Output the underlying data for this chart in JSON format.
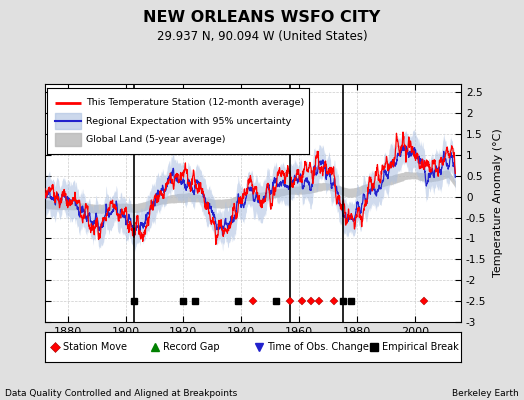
{
  "title": "NEW ORLEANS WSFO CITY",
  "subtitle": "29.937 N, 90.094 W (United States)",
  "ylabel": "Temperature Anomaly (°C)",
  "xlabel_note": "Data Quality Controlled and Aligned at Breakpoints",
  "source_note": "Berkeley Earth",
  "year_start": 1869,
  "year_end": 2014,
  "ylim": [
    -3.0,
    2.7
  ],
  "yticks": [
    -3,
    -2.5,
    -2,
    -1.5,
    -1,
    -0.5,
    0,
    0.5,
    1,
    1.5,
    2,
    2.5
  ],
  "xticks": [
    1880,
    1900,
    1920,
    1940,
    1960,
    1980,
    2000
  ],
  "bg_color": "#e0e0e0",
  "plot_bg_color": "#ffffff",
  "grid_color": "#cccccc",
  "station_move_years": [
    1944,
    1957,
    1961,
    1964,
    1967,
    1972,
    2003
  ],
  "empirical_break_years": [
    1903,
    1920,
    1924,
    1939,
    1952,
    1975,
    1978
  ],
  "vertical_lines_years": [
    1903,
    1957,
    1975
  ],
  "random_seed": 42
}
